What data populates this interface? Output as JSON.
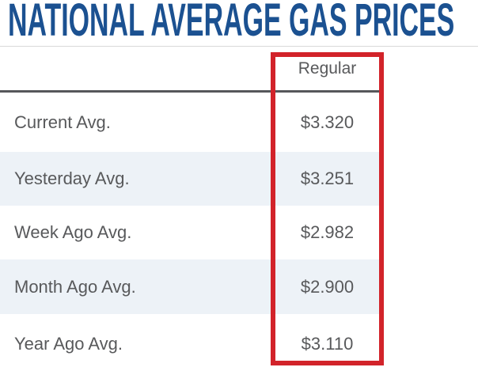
{
  "title": "NATIONAL AVERAGE GAS PRICES",
  "table": {
    "header": "Regular",
    "rows": [
      {
        "label": "Current Avg.",
        "value": "$3.320"
      },
      {
        "label": "Yesterday Avg.",
        "value": "$3.251"
      },
      {
        "label": "Week Ago Avg.",
        "value": "$2.982"
      },
      {
        "label": "Month Ago Avg.",
        "value": "$2.900"
      },
      {
        "label": "Year Ago Avg.",
        "value": "$3.110"
      }
    ]
  },
  "colors": {
    "title_blue": "#1b5191",
    "highlight_red": "#d2232a",
    "striped_row": "#edf2f7",
    "text_gray": "#58595b",
    "header_underline": "#56575b",
    "top_hairline": "#d9d9d9"
  },
  "chart_data": {
    "type": "table",
    "title": "NATIONAL AVERAGE GAS PRICES",
    "columns": [
      "",
      "Regular"
    ],
    "rows": [
      [
        "Current Avg.",
        "$3.320"
      ],
      [
        "Yesterday Avg.",
        "$3.251"
      ],
      [
        "Week Ago Avg.",
        "$2.982"
      ],
      [
        "Month Ago Avg.",
        "$2.900"
      ],
      [
        "Year Ago Avg.",
        "$3.110"
      ]
    ],
    "annotations": [
      "Regular price column outlined with red rectangle"
    ],
    "layout": {
      "striped_rows": [
        1,
        3
      ],
      "value_column_x": "right",
      "units": "USD per gallon"
    }
  }
}
